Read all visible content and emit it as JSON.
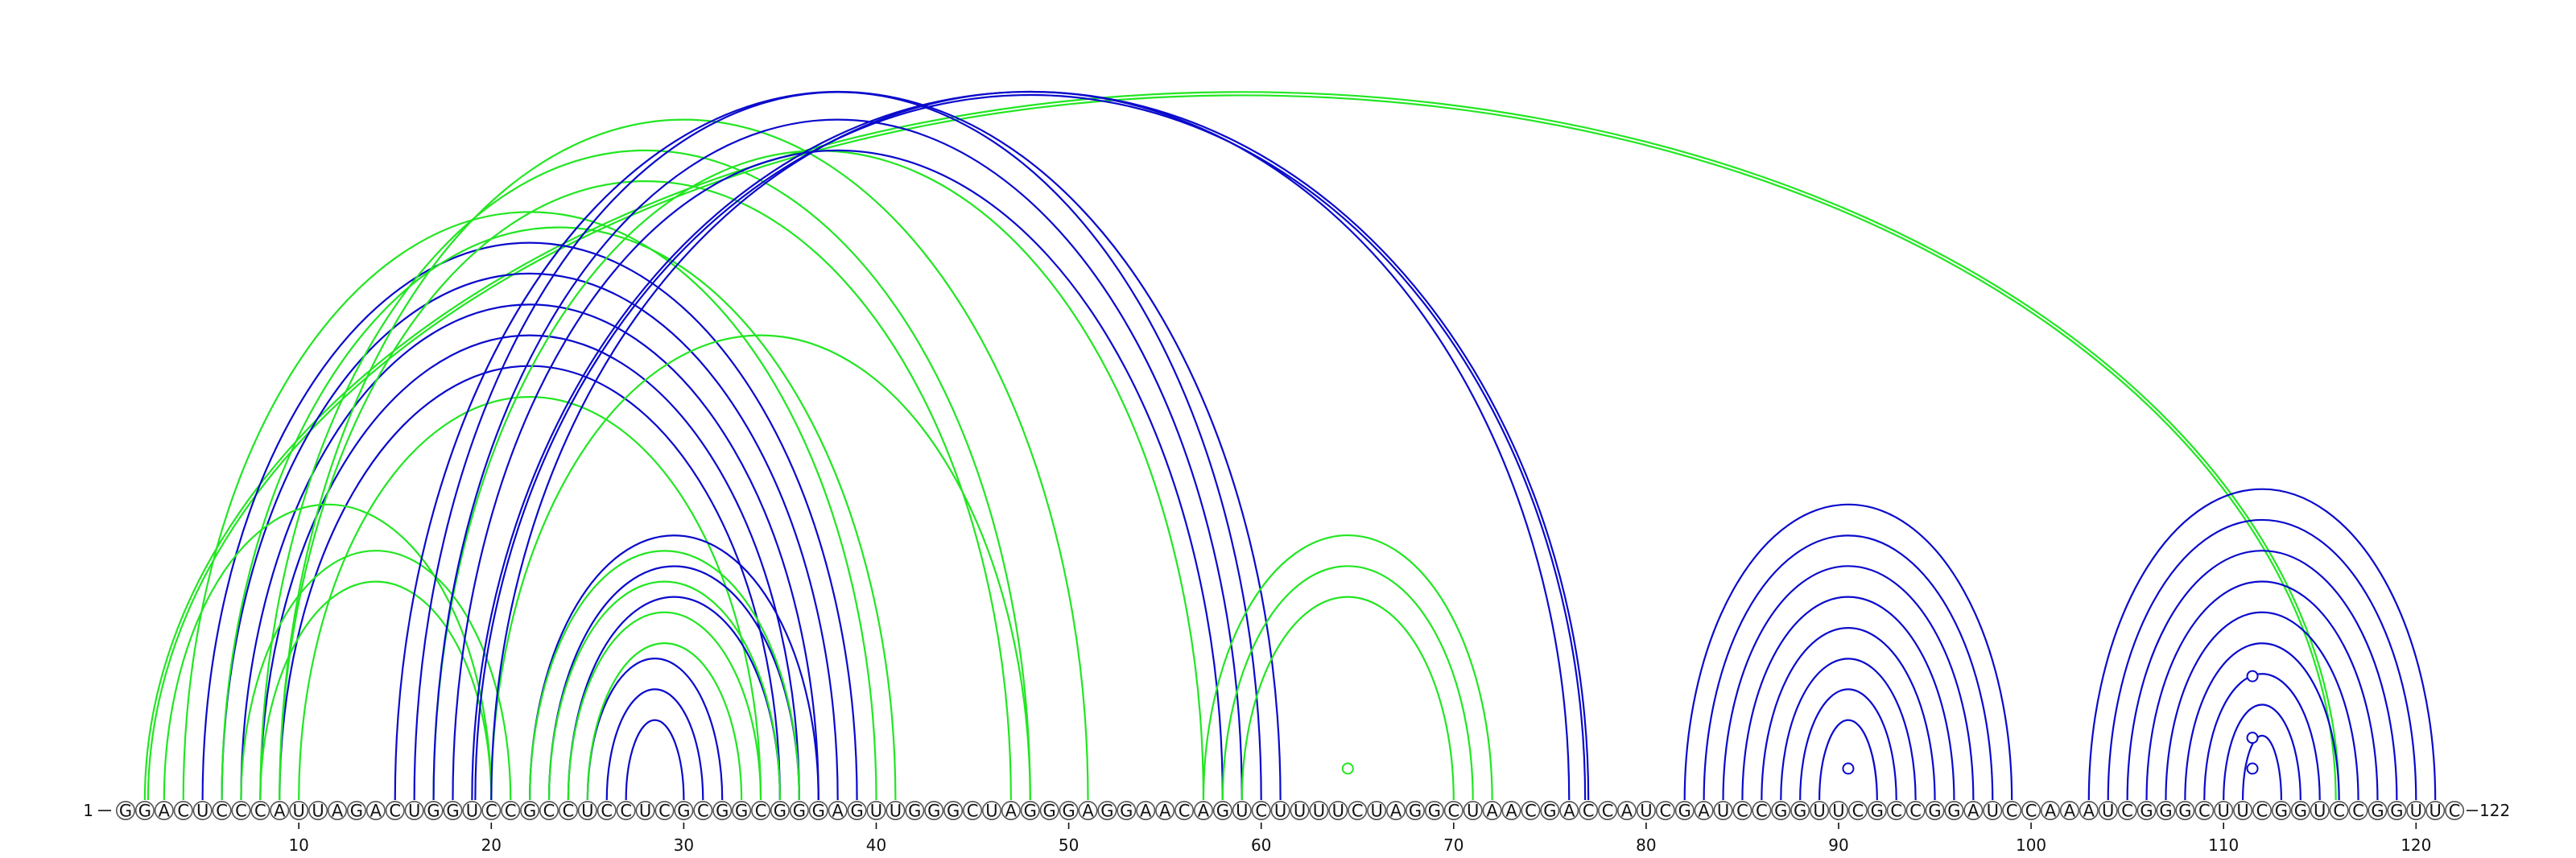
{
  "diagram": {
    "type": "rna-arc-diagram",
    "sequence": "GGACUCCCAUUAGACUGGUCCGCCUCCUCGCGGCGGGAGUUGGGCUAGGGAGGAACAGUCUUUUCUAGGCUAACGACCAUCGAUCCGGUUCGCCGGAUCCAAAUCGGGCUUCGGUCCGGUUC",
    "start_label": "1",
    "end_label": "122",
    "ticks": [
      "10",
      "20",
      "30",
      "40",
      "50",
      "60",
      "70",
      "80",
      "90",
      "100",
      "110",
      "120"
    ],
    "colors": {
      "blue": "#0a0acc",
      "green": "#22e622",
      "circle_stroke": "#555555"
    },
    "arcs": [
      {
        "i": 2,
        "j": 116,
        "color": "green",
        "double": true
      },
      {
        "i": 5,
        "j": 39,
        "color": "blue"
      },
      {
        "i": 6,
        "j": 38,
        "color": "blue"
      },
      {
        "i": 7,
        "j": 37,
        "color": "blue"
      },
      {
        "i": 8,
        "j": 36,
        "color": "blue"
      },
      {
        "i": 9,
        "j": 35,
        "color": "blue"
      },
      {
        "i": 4,
        "j": 40,
        "color": "green"
      },
      {
        "i": 6,
        "j": 41,
        "color": "green"
      },
      {
        "i": 3,
        "j": 20,
        "color": "green"
      },
      {
        "i": 7,
        "j": 21,
        "color": "green"
      },
      {
        "i": 8,
        "j": 20,
        "color": "green"
      },
      {
        "i": 8,
        "j": 48,
        "color": "green"
      },
      {
        "i": 9,
        "j": 47,
        "color": "green"
      },
      {
        "i": 10,
        "j": 34,
        "color": "green"
      },
      {
        "i": 9,
        "j": 51,
        "color": "green"
      },
      {
        "i": 17,
        "j": 57,
        "color": "green"
      },
      {
        "i": 20,
        "j": 48,
        "color": "green"
      },
      {
        "i": 15,
        "j": 61,
        "color": "blue"
      },
      {
        "i": 16,
        "j": 60,
        "color": "blue"
      },
      {
        "i": 17,
        "j": 59,
        "color": "blue"
      },
      {
        "i": 18,
        "j": 58,
        "color": "blue"
      },
      {
        "i": 19,
        "j": 77,
        "color": "blue",
        "double": true
      },
      {
        "i": 20,
        "j": 76,
        "color": "blue"
      },
      {
        "i": 22,
        "j": 37,
        "color": "blue"
      },
      {
        "i": 23,
        "j": 36,
        "color": "blue"
      },
      {
        "i": 24,
        "j": 35,
        "color": "blue"
      },
      {
        "i": 25,
        "j": 32,
        "color": "blue"
      },
      {
        "i": 26,
        "j": 31,
        "color": "blue"
      },
      {
        "i": 27,
        "j": 30,
        "color": "blue"
      },
      {
        "i": 22,
        "j": 36,
        "color": "green"
      },
      {
        "i": 23,
        "j": 35,
        "color": "green"
      },
      {
        "i": 24,
        "j": 34,
        "color": "green"
      },
      {
        "i": 25,
        "j": 33,
        "color": "green"
      },
      {
        "i": 57,
        "j": 72,
        "color": "green"
      },
      {
        "i": 58,
        "j": 71,
        "color": "green"
      },
      {
        "i": 59,
        "j": 70,
        "color": "green"
      },
      {
        "i": 82,
        "j": 99,
        "color": "blue"
      },
      {
        "i": 83,
        "j": 98,
        "color": "blue"
      },
      {
        "i": 84,
        "j": 97,
        "color": "blue"
      },
      {
        "i": 85,
        "j": 96,
        "color": "blue"
      },
      {
        "i": 86,
        "j": 95,
        "color": "blue"
      },
      {
        "i": 87,
        "j": 94,
        "color": "blue"
      },
      {
        "i": 88,
        "j": 93,
        "color": "blue"
      },
      {
        "i": 89,
        "j": 92,
        "color": "blue"
      },
      {
        "i": 103,
        "j": 121,
        "color": "blue"
      },
      {
        "i": 104,
        "j": 120,
        "color": "blue"
      },
      {
        "i": 105,
        "j": 119,
        "color": "blue"
      },
      {
        "i": 106,
        "j": 118,
        "color": "blue"
      },
      {
        "i": 107,
        "j": 117,
        "color": "blue"
      },
      {
        "i": 108,
        "j": 116,
        "color": "blue"
      },
      {
        "i": 109,
        "j": 115,
        "color": "blue"
      },
      {
        "i": 110,
        "j": 114,
        "color": "blue"
      },
      {
        "i": 111,
        "j": 113,
        "color": "blue"
      }
    ],
    "markers": [
      {
        "i": 64,
        "j": 65,
        "color": "green"
      },
      {
        "i": 90,
        "j": 91,
        "color": "blue"
      },
      {
        "i": 111,
        "j": 112,
        "color": "blue"
      },
      {
        "i": 110,
        "j": 113,
        "color": "blue"
      },
      {
        "i": 108,
        "j": 115,
        "color": "blue"
      }
    ]
  }
}
